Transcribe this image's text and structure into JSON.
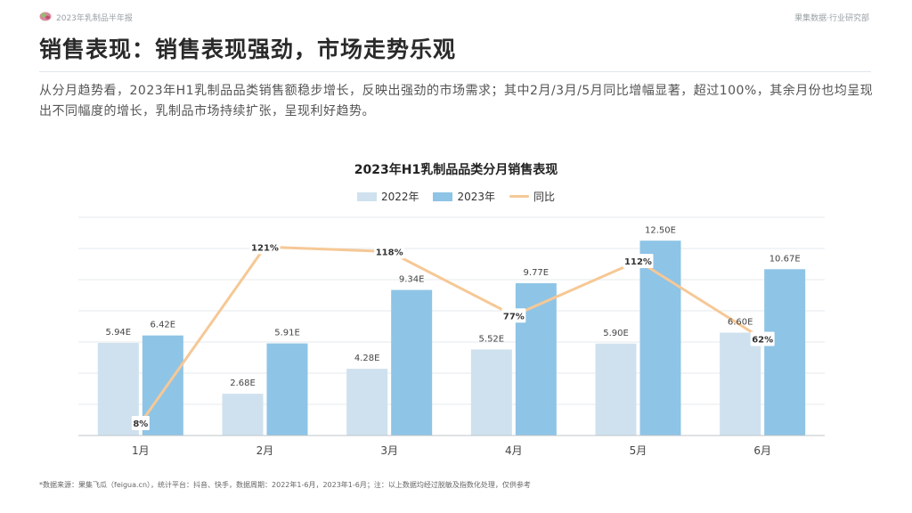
{
  "header": {
    "report_name": "2023年乳制品半年报",
    "department": "果集数据·行业研究部"
  },
  "page_title": "销售表现：销售表现强劲，市场走势乐观",
  "description": "从分月趋势看，2023年H1乳制品品类销售额稳步增长，反映出强劲的市场需求；其中2月/3月/5月同比增幅显著，超过100%，其余月份也均呈现出不同幅度的增长，乳制品市场持续扩张，呈现利好趋势。",
  "footnote": "*数据来源：果集飞瓜（feigua.cn），统计平台：抖音、快手，数据周期：2022年1-6月，2023年1-6月；注：以上数据均经过脱敏及指数化处理，仅供参考",
  "colors": {
    "series_2022": "#cfe1ee",
    "series_2023": "#8ec4e6",
    "series_yoy": "#f6c896",
    "grid": "#e6e9ec",
    "axis": "#bfc5ca"
  },
  "chart_data": {
    "type": "bar",
    "title": "2023年H1乳制品品类分月销售表现",
    "categories": [
      "1月",
      "2月",
      "3月",
      "4月",
      "5月",
      "6月"
    ],
    "series": [
      {
        "name": "2022年",
        "values": [
          5.94,
          2.68,
          4.28,
          5.52,
          5.9,
          6.6
        ],
        "labels": [
          "5.94E",
          "2.68E",
          "4.28E",
          "5.52E",
          "5.90E",
          "6.60E"
        ]
      },
      {
        "name": "2023年",
        "values": [
          6.42,
          5.91,
          9.34,
          9.77,
          12.5,
          10.67
        ],
        "labels": [
          "6.42E",
          "5.91E",
          "9.34E",
          "9.77E",
          "12.50E",
          "10.67E"
        ]
      }
    ],
    "line_series": {
      "name": "同比",
      "values": [
        8,
        121,
        118,
        77,
        112,
        62
      ],
      "labels": [
        "8%",
        "121%",
        "118%",
        "77%",
        "112%",
        "62%"
      ]
    },
    "ylim": [
      0,
      14
    ],
    "y2lim": [
      0,
      140
    ],
    "grid": true,
    "legend_position": "top-center"
  }
}
